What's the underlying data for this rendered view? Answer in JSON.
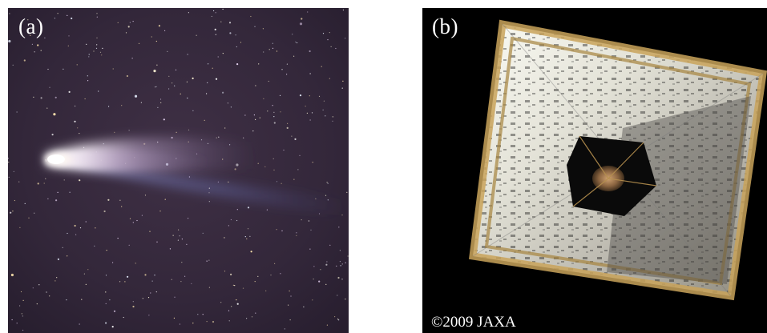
{
  "panels": [
    {
      "label": "(a)"
    },
    {
      "label": "(b)",
      "credit": "©2009 JAXA"
    }
  ]
}
